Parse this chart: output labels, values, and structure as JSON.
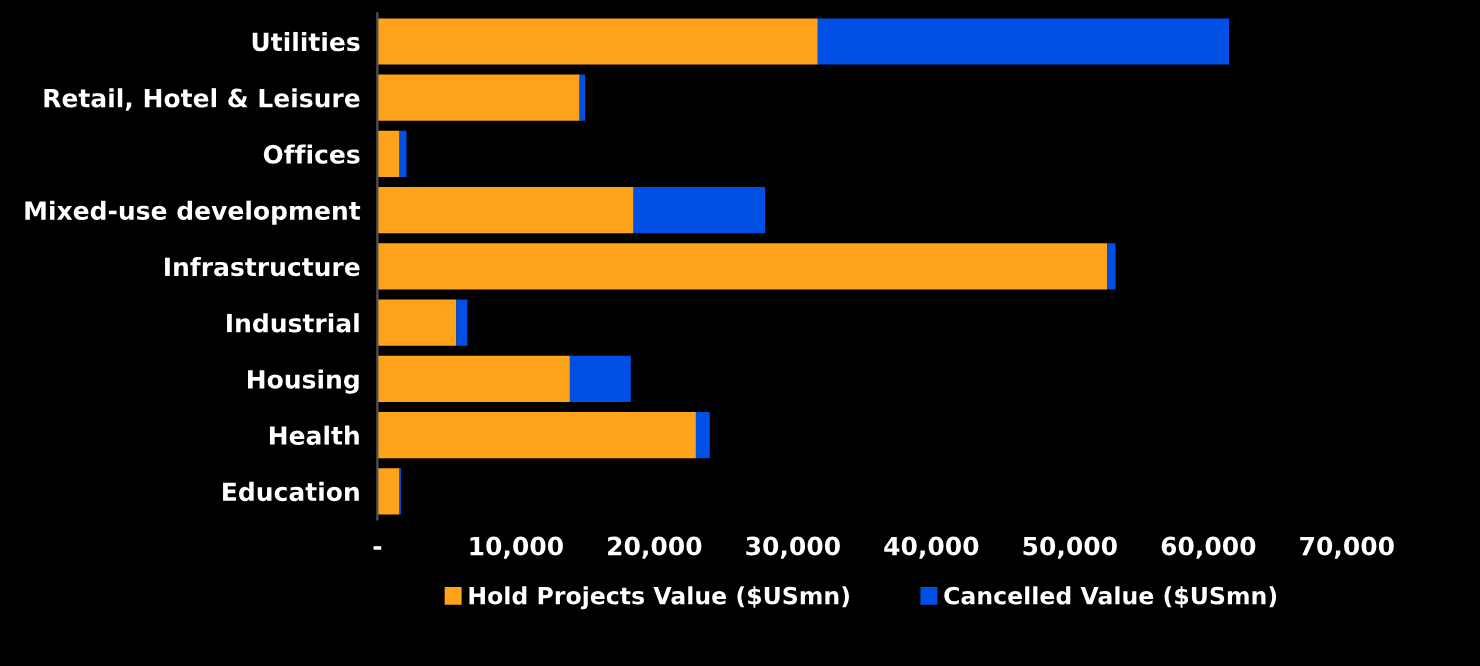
{
  "chart_data": {
    "type": "bar",
    "orientation": "horizontal",
    "stacked": true,
    "categories": [
      "Utilities",
      "Retail, Hotel & Leisure",
      "Offices",
      "Mixed-use development",
      "Infrastructure",
      "Industrial",
      "Housing",
      "Health",
      "Education"
    ],
    "series": [
      {
        "name": "Hold Projects Value ($USmn)",
        "color": "#ffa31a",
        "values": [
          31800,
          14600,
          1600,
          18500,
          52700,
          5700,
          13900,
          23000,
          1600
        ]
      },
      {
        "name": "Cancelled Value ($USmn)",
        "color": "#0050e6",
        "values": [
          29700,
          400,
          500,
          9500,
          600,
          800,
          4400,
          1000,
          100
        ]
      }
    ],
    "xlim": [
      0,
      70000
    ],
    "xticks": [
      {
        "value": 0,
        "label": "-"
      },
      {
        "value": 10000,
        "label": "10,000"
      },
      {
        "value": 20000,
        "label": "20,000"
      },
      {
        "value": 30000,
        "label": "30,000"
      },
      {
        "value": 40000,
        "label": "40,000"
      },
      {
        "value": 50000,
        "label": "50,000"
      },
      {
        "value": 60000,
        "label": "60,000"
      },
      {
        "value": 70000,
        "label": "70,000"
      }
    ],
    "legend": "bottom",
    "grid": false
  }
}
